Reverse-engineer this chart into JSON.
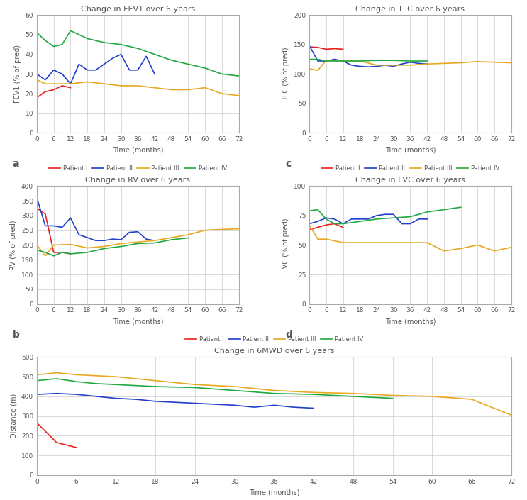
{
  "colors": {
    "patient1": "#e8201a",
    "patient2": "#2040c8",
    "patient3": "#e8a820",
    "patient4": "#20a840"
  },
  "fev1": {
    "title": "Change in FEV1 over 6 years",
    "ylabel": "FEV1 (% of pred)",
    "xlabel": "Time (months)",
    "ylim": [
      0,
      60
    ],
    "yticks": [
      0,
      10,
      20,
      30,
      40,
      50,
      60
    ],
    "xticks": [
      0,
      6,
      12,
      18,
      24,
      30,
      36,
      42,
      48,
      54,
      60,
      66,
      72
    ],
    "patient1": {
      "x": [
        0,
        3,
        6,
        9,
        12
      ],
      "y": [
        18,
        21,
        22,
        24,
        23
      ]
    },
    "patient2": {
      "x": [
        0,
        3,
        6,
        9,
        12,
        15,
        18,
        21,
        24,
        27,
        30,
        33,
        36,
        39,
        42
      ],
      "y": [
        30,
        27,
        32,
        30,
        25,
        35,
        32,
        32,
        35,
        38,
        40,
        32,
        32,
        39,
        30
      ]
    },
    "patient3": {
      "x": [
        0,
        3,
        6,
        12,
        18,
        24,
        30,
        36,
        42,
        48,
        54,
        60,
        66,
        72
      ],
      "y": [
        27,
        25,
        25,
        25,
        26,
        25,
        24,
        24,
        23,
        22,
        22,
        23,
        20,
        19
      ]
    },
    "patient4": {
      "x": [
        0,
        3,
        6,
        9,
        12,
        18,
        24,
        30,
        36,
        42,
        48,
        54,
        60,
        66,
        72
      ],
      "y": [
        51,
        47,
        44,
        45,
        52,
        48,
        46,
        45,
        43,
        40,
        37,
        35,
        33,
        30,
        29
      ]
    }
  },
  "tlc": {
    "title": "Change in TLC over 6 years",
    "ylabel": "TLC (% of pred)",
    "xlabel": "Time (months)",
    "ylim": [
      0,
      200
    ],
    "yticks": [
      0,
      50,
      100,
      150,
      200
    ],
    "xticks": [
      0,
      6,
      12,
      18,
      24,
      30,
      36,
      42,
      48,
      54,
      60,
      66,
      72
    ],
    "patient1": {
      "x": [
        0,
        3,
        6,
        9,
        12
      ],
      "y": [
        146,
        145,
        142,
        143,
        142
      ]
    },
    "patient2": {
      "x": [
        0,
        3,
        6,
        9,
        12,
        15,
        18,
        21,
        24,
        27,
        30,
        33,
        36,
        39,
        42
      ],
      "y": [
        148,
        122,
        122,
        125,
        122,
        115,
        113,
        112,
        113,
        115,
        113,
        117,
        120,
        118,
        117
      ]
    },
    "patient3": {
      "x": [
        0,
        3,
        6,
        12,
        18,
        24,
        30,
        36,
        42,
        48,
        54,
        60,
        66,
        72
      ],
      "y": [
        109,
        106,
        123,
        123,
        122,
        115,
        115,
        115,
        117,
        118,
        119,
        121,
        120,
        119
      ]
    },
    "patient4": {
      "x": [
        0,
        3,
        6,
        9,
        12,
        18,
        24,
        30,
        36,
        42
      ],
      "y": [
        125,
        125,
        122,
        122,
        122,
        122,
        123,
        123,
        122,
        122
      ]
    }
  },
  "rv": {
    "title": "Change in RV over 6 years",
    "ylabel": "RV (% of pred)",
    "xlabel": "Time (months)",
    "ylim": [
      0,
      400
    ],
    "yticks": [
      0,
      50,
      100,
      150,
      200,
      250,
      300,
      350,
      400
    ],
    "xticks": [
      0,
      6,
      12,
      18,
      24,
      30,
      36,
      42,
      48,
      54,
      60,
      66,
      72
    ],
    "patient1": {
      "x": [
        0,
        3,
        6,
        9,
        12
      ],
      "y": [
        325,
        305,
        175,
        175,
        170
      ]
    },
    "patient2": {
      "x": [
        0,
        3,
        6,
        9,
        12,
        15,
        18,
        21,
        24,
        27,
        30,
        33,
        36,
        39,
        42
      ],
      "y": [
        360,
        265,
        265,
        260,
        292,
        235,
        225,
        215,
        215,
        220,
        218,
        243,
        245,
        220,
        215
      ]
    },
    "patient3": {
      "x": [
        0,
        3,
        6,
        12,
        18,
        24,
        30,
        36,
        42,
        48,
        54,
        60,
        66,
        72
      ],
      "y": [
        200,
        163,
        200,
        202,
        190,
        195,
        205,
        210,
        215,
        225,
        235,
        250,
        253,
        255
      ]
    },
    "patient4": {
      "x": [
        0,
        3,
        6,
        9,
        12,
        18,
        24,
        30,
        36,
        42,
        48,
        54
      ],
      "y": [
        183,
        175,
        163,
        175,
        170,
        175,
        188,
        195,
        205,
        207,
        218,
        224
      ]
    }
  },
  "fvc": {
    "title": "Change in FVC over 6 years",
    "ylabel": "FVC (% of pred)",
    "xlabel": "Time (months)",
    "ylim": [
      0,
      100
    ],
    "yticks": [
      0,
      25,
      50,
      75,
      100
    ],
    "xticks": [
      0,
      6,
      12,
      18,
      24,
      30,
      36,
      42,
      48,
      54,
      60,
      66,
      72
    ],
    "patient1": {
      "x": [
        0,
        3,
        6,
        9,
        12
      ],
      "y": [
        63,
        65,
        67,
        68,
        65
      ]
    },
    "patient2": {
      "x": [
        0,
        3,
        6,
        9,
        12,
        15,
        18,
        21,
        24,
        27,
        30,
        33,
        36,
        39,
        42
      ],
      "y": [
        68,
        70,
        73,
        72,
        68,
        72,
        72,
        72,
        75,
        76,
        76,
        68,
        68,
        72,
        72
      ]
    },
    "patient3": {
      "x": [
        0,
        3,
        6,
        12,
        18,
        24,
        30,
        36,
        42,
        48,
        54,
        60,
        66,
        72
      ],
      "y": [
        67,
        55,
        55,
        52,
        52,
        52,
        52,
        52,
        52,
        45,
        47,
        50,
        45,
        48
      ]
    },
    "patient4": {
      "x": [
        0,
        3,
        6,
        9,
        12,
        18,
        24,
        30,
        36,
        42,
        48,
        54
      ],
      "y": [
        79,
        80,
        72,
        68,
        68,
        70,
        72,
        73,
        74,
        78,
        80,
        82
      ]
    }
  },
  "sixmwd": {
    "title": "Change in 6MWD over 6 years",
    "ylabel": "Distance (m)",
    "xlabel": "Time (months)",
    "ylim": [
      0,
      600
    ],
    "yticks": [
      0,
      100,
      200,
      300,
      400,
      500,
      600
    ],
    "xticks": [
      0,
      6,
      12,
      18,
      24,
      30,
      36,
      42,
      48,
      54,
      60,
      66,
      72
    ],
    "patient1": {
      "x": [
        0,
        3,
        6
      ],
      "y": [
        265,
        165,
        140
      ]
    },
    "patient2": {
      "x": [
        0,
        3,
        6,
        9,
        12,
        15,
        18,
        21,
        24,
        27,
        30,
        33,
        36,
        39,
        42
      ],
      "y": [
        410,
        415,
        410,
        400,
        390,
        385,
        375,
        370,
        365,
        360,
        355,
        345,
        355,
        345,
        340
      ]
    },
    "patient3": {
      "x": [
        0,
        3,
        6,
        12,
        18,
        24,
        30,
        36,
        42,
        48,
        54,
        60,
        66,
        72
      ],
      "y": [
        510,
        520,
        510,
        500,
        480,
        460,
        450,
        430,
        420,
        415,
        405,
        400,
        385,
        305
      ]
    },
    "patient4": {
      "x": [
        0,
        3,
        6,
        9,
        12,
        18,
        24,
        30,
        36,
        42,
        48,
        54
      ],
      "y": [
        480,
        490,
        475,
        465,
        460,
        450,
        445,
        430,
        415,
        410,
        400,
        390
      ]
    }
  }
}
